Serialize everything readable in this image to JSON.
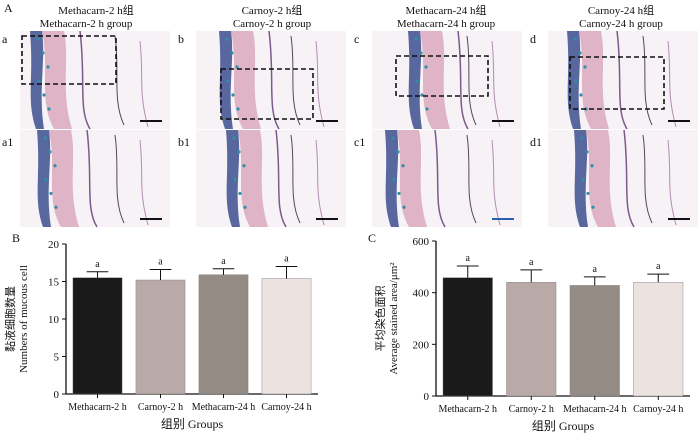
{
  "figure": {
    "panel_A_label": "A",
    "panel_B_label": "B",
    "panel_C_label": "C",
    "micrographs": {
      "columns": [
        {
          "title_cn": "Methacarn-2 h组",
          "title_en": "Methacarn-2 h group",
          "top_label": "a",
          "bottom_label": "a1"
        },
        {
          "title_cn": "Carnoy-2 h组",
          "title_en": "Carnoy-2 h group",
          "top_label": "b",
          "bottom_label": "b1"
        },
        {
          "title_cn": "Methacarn-24 h组",
          "title_en": "Methacarn-24 h group",
          "top_label": "c",
          "bottom_label": "c1"
        },
        {
          "title_cn": "Carnoy-24 h组",
          "title_en": "Carnoy-24 h group",
          "top_label": "d",
          "bottom_label": "d1"
        }
      ]
    }
  },
  "chart_data": [
    {
      "type": "bar",
      "panel": "B",
      "categories": [
        "Methacarn-2 h",
        "Carnoy-2 h",
        "Methacarn-24 h",
        "Carnoy-24 h"
      ],
      "values": [
        15.5,
        15.2,
        15.9,
        15.4
      ],
      "errors": [
        0.8,
        1.4,
        0.8,
        1.6
      ],
      "significance": [
        "a",
        "a",
        "a",
        "a"
      ],
      "colors": [
        "#1a1a1a",
        "#b9aaa8",
        "#958b85",
        "#ece2e0"
      ],
      "ylabel_cn": "黏液细胞数量",
      "ylabel_en": "Numbers of mucous cell",
      "xlabel": "组别 Groups",
      "ylim": [
        0,
        20
      ],
      "yticks": [
        "0",
        "5",
        "10",
        "15",
        "20"
      ]
    },
    {
      "type": "bar",
      "panel": "C",
      "categories": [
        "Methacarn-2 h",
        "Carnoy-2 h",
        "Methacarn-24 h",
        "Carnoy-24 h"
      ],
      "values": [
        458,
        440,
        428,
        440
      ],
      "errors": [
        45,
        48,
        33,
        32
      ],
      "significance": [
        "a",
        "a",
        "a",
        "a"
      ],
      "colors": [
        "#1a1a1a",
        "#b9aaa8",
        "#958b85",
        "#ece2e0"
      ],
      "ylabel_cn": "平均染色面积",
      "ylabel_en": "Average stained area/μm²",
      "xlabel": "组别 Groups",
      "ylim": [
        0,
        600
      ],
      "yticks": [
        "0",
        "200",
        "400",
        "600"
      ]
    }
  ]
}
